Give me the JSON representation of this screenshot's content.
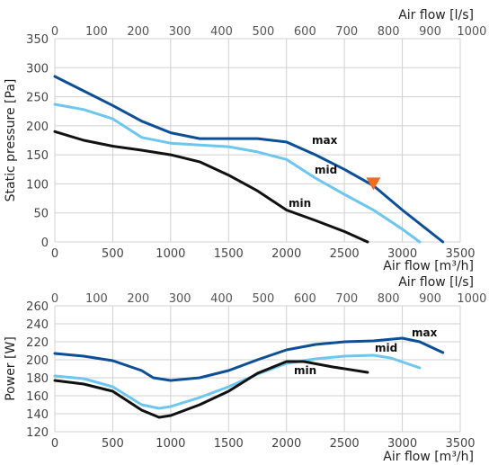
{
  "chart_data": [
    {
      "type": "line",
      "x_axis_bottom": {
        "label": "Air flow [m³/h]",
        "ticks": [
          0,
          500,
          1000,
          1500,
          2000,
          2500,
          3000,
          3500
        ],
        "range": [
          0,
          3500
        ]
      },
      "x_axis_top": {
        "label": "Air flow [l/s]",
        "ticks": [
          0,
          100,
          200,
          300,
          400,
          500,
          600,
          700,
          800,
          900,
          1000
        ]
      },
      "y_axis": {
        "label": "Static pressure [Pa]",
        "ticks": [
          0,
          50,
          100,
          150,
          200,
          250,
          300,
          350
        ],
        "range": [
          0,
          350
        ]
      },
      "grid": true,
      "series": [
        {
          "name": "max",
          "color": "#0d4f96",
          "points": [
            [
              0,
              285
            ],
            [
              250,
              260
            ],
            [
              500,
              235
            ],
            [
              750,
              208
            ],
            [
              1000,
              188
            ],
            [
              1250,
              178
            ],
            [
              1500,
              178
            ],
            [
              1750,
              178
            ],
            [
              2000,
              172
            ],
            [
              2250,
              150
            ],
            [
              2500,
              125
            ],
            [
              2750,
              97
            ],
            [
              3000,
              55
            ],
            [
              3350,
              0
            ]
          ]
        },
        {
          "name": "mid",
          "color": "#6cc6ee",
          "points": [
            [
              0,
              237
            ],
            [
              250,
              228
            ],
            [
              500,
              212
            ],
            [
              750,
              180
            ],
            [
              1000,
              170
            ],
            [
              1250,
              167
            ],
            [
              1500,
              164
            ],
            [
              1750,
              155
            ],
            [
              2000,
              142
            ],
            [
              2250,
              110
            ],
            [
              2500,
              82
            ],
            [
              2750,
              55
            ],
            [
              3000,
              22
            ],
            [
              3150,
              0
            ]
          ]
        },
        {
          "name": "min",
          "color": "#111111",
          "points": [
            [
              0,
              190
            ],
            [
              250,
              175
            ],
            [
              500,
              165
            ],
            [
              750,
              158
            ],
            [
              1000,
              150
            ],
            [
              1250,
              138
            ],
            [
              1500,
              115
            ],
            [
              1750,
              88
            ],
            [
              2000,
              55
            ],
            [
              2250,
              37
            ],
            [
              2500,
              18
            ],
            [
              2700,
              0
            ]
          ]
        }
      ],
      "marker": {
        "shape": "triangle-down",
        "color": "#f26b21",
        "x": 2750,
        "y": 100
      }
    },
    {
      "type": "line",
      "x_axis_bottom": {
        "label": "Air flow [m³/h]",
        "ticks": [
          0,
          500,
          1000,
          1500,
          2000,
          2500,
          3000,
          3500
        ],
        "range": [
          0,
          3500
        ]
      },
      "x_axis_top": {
        "label": "Air flow [l/s]",
        "ticks": [
          0,
          100,
          200,
          300,
          400,
          500,
          600,
          700,
          800,
          900,
          1000
        ]
      },
      "y_axis": {
        "label": "Power [W]",
        "ticks": [
          120,
          140,
          160,
          180,
          200,
          220,
          240,
          260
        ],
        "range": [
          120,
          260
        ]
      },
      "grid": true,
      "series": [
        {
          "name": "max",
          "color": "#0d4f96",
          "points": [
            [
              0,
              207
            ],
            [
              250,
              204
            ],
            [
              500,
              199
            ],
            [
              750,
              188
            ],
            [
              850,
              180
            ],
            [
              1000,
              177
            ],
            [
              1250,
              180
            ],
            [
              1500,
              188
            ],
            [
              1750,
              200
            ],
            [
              2000,
              211
            ],
            [
              2250,
              217
            ],
            [
              2500,
              220
            ],
            [
              2750,
              221
            ],
            [
              3000,
              224
            ],
            [
              3150,
              220
            ],
            [
              3350,
              208
            ]
          ]
        },
        {
          "name": "mid",
          "color": "#6cc6ee",
          "points": [
            [
              0,
              182
            ],
            [
              250,
              179
            ],
            [
              500,
              170
            ],
            [
              750,
              150
            ],
            [
              900,
              146
            ],
            [
              1000,
              148
            ],
            [
              1250,
              158
            ],
            [
              1500,
              170
            ],
            [
              1750,
              184
            ],
            [
              2000,
              196
            ],
            [
              2250,
              201
            ],
            [
              2500,
              204
            ],
            [
              2750,
              205
            ],
            [
              2900,
              202
            ],
            [
              3150,
              191
            ]
          ]
        },
        {
          "name": "min",
          "color": "#111111",
          "points": [
            [
              0,
              177
            ],
            [
              250,
              173
            ],
            [
              500,
              165
            ],
            [
              750,
              144
            ],
            [
              900,
              136
            ],
            [
              1000,
              138
            ],
            [
              1250,
              150
            ],
            [
              1500,
              165
            ],
            [
              1750,
              185
            ],
            [
              2000,
              198
            ],
            [
              2150,
              198
            ],
            [
              2400,
              192
            ],
            [
              2700,
              186
            ]
          ]
        }
      ]
    }
  ]
}
